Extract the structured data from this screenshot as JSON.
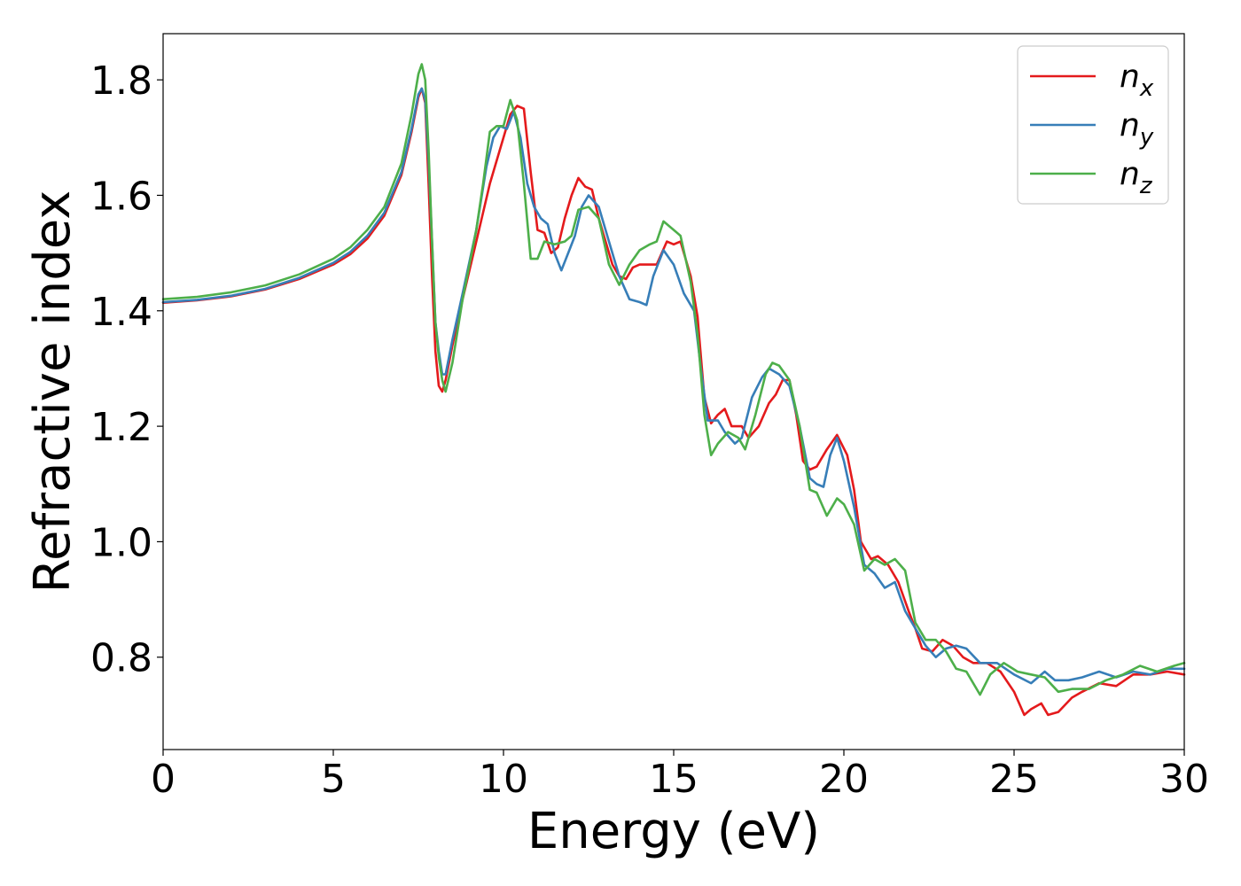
{
  "chart_data": {
    "type": "line",
    "title": "",
    "xlabel": "Energy (eV)",
    "ylabel": "Refractive index",
    "xlim": [
      0,
      30
    ],
    "ylim": [
      0.64,
      1.88
    ],
    "xticks": [
      "0",
      "5",
      "10",
      "15",
      "20",
      "25",
      "30"
    ],
    "yticks": [
      "0.8",
      "1.0",
      "1.2",
      "1.4",
      "1.6",
      "1.8"
    ],
    "grid": false,
    "legend_position": "top-right",
    "series": [
      {
        "name": "n_x",
        "label_base": "n",
        "label_sub": "x",
        "color": "#e41a1c",
        "points": [
          [
            0,
            1.414
          ],
          [
            1,
            1.418
          ],
          [
            2,
            1.425
          ],
          [
            3,
            1.437
          ],
          [
            4,
            1.455
          ],
          [
            5,
            1.48
          ],
          [
            5.5,
            1.498
          ],
          [
            6,
            1.525
          ],
          [
            6.5,
            1.565
          ],
          [
            7,
            1.635
          ],
          [
            7.3,
            1.71
          ],
          [
            7.5,
            1.77
          ],
          [
            7.6,
            1.785
          ],
          [
            7.7,
            1.76
          ],
          [
            7.8,
            1.62
          ],
          [
            7.9,
            1.46
          ],
          [
            8.0,
            1.33
          ],
          [
            8.1,
            1.27
          ],
          [
            8.2,
            1.26
          ],
          [
            8.3,
            1.28
          ],
          [
            8.5,
            1.34
          ],
          [
            8.8,
            1.42
          ],
          [
            9.2,
            1.52
          ],
          [
            9.6,
            1.62
          ],
          [
            10.0,
            1.7
          ],
          [
            10.2,
            1.74
          ],
          [
            10.4,
            1.755
          ],
          [
            10.6,
            1.75
          ],
          [
            10.8,
            1.64
          ],
          [
            11.0,
            1.54
          ],
          [
            11.2,
            1.535
          ],
          [
            11.4,
            1.5
          ],
          [
            11.6,
            1.51
          ],
          [
            11.8,
            1.56
          ],
          [
            12.0,
            1.6
          ],
          [
            12.2,
            1.63
          ],
          [
            12.4,
            1.615
          ],
          [
            12.6,
            1.61
          ],
          [
            12.8,
            1.56
          ],
          [
            13.0,
            1.52
          ],
          [
            13.2,
            1.48
          ],
          [
            13.4,
            1.46
          ],
          [
            13.6,
            1.455
          ],
          [
            13.8,
            1.475
          ],
          [
            14.0,
            1.48
          ],
          [
            14.2,
            1.48
          ],
          [
            14.5,
            1.48
          ],
          [
            14.8,
            1.52
          ],
          [
            15.0,
            1.515
          ],
          [
            15.2,
            1.52
          ],
          [
            15.5,
            1.46
          ],
          [
            15.7,
            1.39
          ],
          [
            15.9,
            1.25
          ],
          [
            16.1,
            1.205
          ],
          [
            16.3,
            1.22
          ],
          [
            16.5,
            1.23
          ],
          [
            16.7,
            1.2
          ],
          [
            17.0,
            1.2
          ],
          [
            17.2,
            1.18
          ],
          [
            17.5,
            1.2
          ],
          [
            17.8,
            1.24
          ],
          [
            18.0,
            1.255
          ],
          [
            18.2,
            1.28
          ],
          [
            18.4,
            1.28
          ],
          [
            18.6,
            1.22
          ],
          [
            18.8,
            1.14
          ],
          [
            19.0,
            1.125
          ],
          [
            19.2,
            1.13
          ],
          [
            19.5,
            1.16
          ],
          [
            19.8,
            1.185
          ],
          [
            20.1,
            1.15
          ],
          [
            20.3,
            1.09
          ],
          [
            20.5,
            1.0
          ],
          [
            20.8,
            0.97
          ],
          [
            21.0,
            0.975
          ],
          [
            21.3,
            0.96
          ],
          [
            21.6,
            0.93
          ],
          [
            21.9,
            0.88
          ],
          [
            22.1,
            0.85
          ],
          [
            22.3,
            0.815
          ],
          [
            22.6,
            0.81
          ],
          [
            22.9,
            0.83
          ],
          [
            23.2,
            0.82
          ],
          [
            23.5,
            0.8
          ],
          [
            23.8,
            0.79
          ],
          [
            24.2,
            0.79
          ],
          [
            24.6,
            0.775
          ],
          [
            25.0,
            0.74
          ],
          [
            25.3,
            0.7
          ],
          [
            25.5,
            0.71
          ],
          [
            25.8,
            0.72
          ],
          [
            26.0,
            0.7
          ],
          [
            26.3,
            0.705
          ],
          [
            26.7,
            0.73
          ],
          [
            27.0,
            0.74
          ],
          [
            27.5,
            0.755
          ],
          [
            28.0,
            0.75
          ],
          [
            28.5,
            0.77
          ],
          [
            29.0,
            0.77
          ],
          [
            29.5,
            0.775
          ],
          [
            30.0,
            0.77
          ]
        ]
      },
      {
        "name": "n_y",
        "label_base": "n",
        "label_sub": "y",
        "color": "#377eb8",
        "points": [
          [
            0,
            1.415
          ],
          [
            1,
            1.419
          ],
          [
            2,
            1.426
          ],
          [
            3,
            1.438
          ],
          [
            4,
            1.457
          ],
          [
            5,
            1.483
          ],
          [
            5.5,
            1.502
          ],
          [
            6,
            1.53
          ],
          [
            6.5,
            1.57
          ],
          [
            7,
            1.64
          ],
          [
            7.3,
            1.715
          ],
          [
            7.5,
            1.775
          ],
          [
            7.6,
            1.785
          ],
          [
            7.7,
            1.765
          ],
          [
            7.8,
            1.66
          ],
          [
            7.9,
            1.52
          ],
          [
            8.0,
            1.38
          ],
          [
            8.1,
            1.33
          ],
          [
            8.2,
            1.29
          ],
          [
            8.3,
            1.29
          ],
          [
            8.5,
            1.35
          ],
          [
            8.8,
            1.43
          ],
          [
            9.2,
            1.54
          ],
          [
            9.5,
            1.65
          ],
          [
            9.7,
            1.7
          ],
          [
            9.9,
            1.72
          ],
          [
            10.1,
            1.715
          ],
          [
            10.3,
            1.745
          ],
          [
            10.5,
            1.7
          ],
          [
            10.7,
            1.62
          ],
          [
            10.9,
            1.58
          ],
          [
            11.1,
            1.56
          ],
          [
            11.3,
            1.55
          ],
          [
            11.5,
            1.5
          ],
          [
            11.7,
            1.47
          ],
          [
            11.9,
            1.5
          ],
          [
            12.1,
            1.53
          ],
          [
            12.3,
            1.58
          ],
          [
            12.5,
            1.6
          ],
          [
            12.8,
            1.58
          ],
          [
            13.1,
            1.52
          ],
          [
            13.4,
            1.46
          ],
          [
            13.7,
            1.42
          ],
          [
            14.0,
            1.415
          ],
          [
            14.2,
            1.41
          ],
          [
            14.4,
            1.46
          ],
          [
            14.7,
            1.505
          ],
          [
            15.0,
            1.48
          ],
          [
            15.3,
            1.43
          ],
          [
            15.6,
            1.4
          ],
          [
            15.8,
            1.3
          ],
          [
            16.0,
            1.21
          ],
          [
            16.3,
            1.21
          ],
          [
            16.5,
            1.19
          ],
          [
            16.8,
            1.17
          ],
          [
            17.0,
            1.18
          ],
          [
            17.3,
            1.25
          ],
          [
            17.6,
            1.285
          ],
          [
            17.8,
            1.3
          ],
          [
            18.1,
            1.29
          ],
          [
            18.4,
            1.27
          ],
          [
            18.7,
            1.2
          ],
          [
            19.0,
            1.11
          ],
          [
            19.2,
            1.1
          ],
          [
            19.4,
            1.095
          ],
          [
            19.6,
            1.15
          ],
          [
            19.8,
            1.18
          ],
          [
            20.0,
            1.14
          ],
          [
            20.3,
            1.06
          ],
          [
            20.6,
            0.96
          ],
          [
            20.9,
            0.945
          ],
          [
            21.2,
            0.92
          ],
          [
            21.5,
            0.93
          ],
          [
            21.8,
            0.88
          ],
          [
            22.1,
            0.85
          ],
          [
            22.4,
            0.82
          ],
          [
            22.7,
            0.8
          ],
          [
            23.0,
            0.815
          ],
          [
            23.3,
            0.82
          ],
          [
            23.6,
            0.815
          ],
          [
            24.0,
            0.79
          ],
          [
            24.5,
            0.79
          ],
          [
            25.0,
            0.77
          ],
          [
            25.5,
            0.755
          ],
          [
            25.9,
            0.775
          ],
          [
            26.2,
            0.76
          ],
          [
            26.6,
            0.76
          ],
          [
            27.0,
            0.765
          ],
          [
            27.5,
            0.775
          ],
          [
            28.0,
            0.765
          ],
          [
            28.5,
            0.775
          ],
          [
            29.0,
            0.77
          ],
          [
            29.5,
            0.78
          ],
          [
            30.0,
            0.78
          ]
        ]
      },
      {
        "name": "n_z",
        "label_base": "n",
        "label_sub": "z",
        "color": "#4daf4a",
        "points": [
          [
            0,
            1.42
          ],
          [
            1,
            1.424
          ],
          [
            2,
            1.432
          ],
          [
            3,
            1.444
          ],
          [
            4,
            1.463
          ],
          [
            5,
            1.49
          ],
          [
            5.5,
            1.51
          ],
          [
            6,
            1.54
          ],
          [
            6.5,
            1.58
          ],
          [
            7,
            1.655
          ],
          [
            7.3,
            1.74
          ],
          [
            7.5,
            1.81
          ],
          [
            7.6,
            1.827
          ],
          [
            7.7,
            1.8
          ],
          [
            7.8,
            1.68
          ],
          [
            7.9,
            1.52
          ],
          [
            8.0,
            1.38
          ],
          [
            8.1,
            1.32
          ],
          [
            8.2,
            1.28
          ],
          [
            8.3,
            1.26
          ],
          [
            8.5,
            1.31
          ],
          [
            8.8,
            1.42
          ],
          [
            9.2,
            1.54
          ],
          [
            9.4,
            1.62
          ],
          [
            9.6,
            1.71
          ],
          [
            9.8,
            1.72
          ],
          [
            10.0,
            1.72
          ],
          [
            10.2,
            1.765
          ],
          [
            10.4,
            1.73
          ],
          [
            10.6,
            1.62
          ],
          [
            10.8,
            1.49
          ],
          [
            11.0,
            1.49
          ],
          [
            11.2,
            1.52
          ],
          [
            11.5,
            1.515
          ],
          [
            11.8,
            1.52
          ],
          [
            12.0,
            1.53
          ],
          [
            12.2,
            1.575
          ],
          [
            12.5,
            1.58
          ],
          [
            12.8,
            1.56
          ],
          [
            13.1,
            1.48
          ],
          [
            13.4,
            1.445
          ],
          [
            13.7,
            1.48
          ],
          [
            14.0,
            1.505
          ],
          [
            14.3,
            1.515
          ],
          [
            14.5,
            1.52
          ],
          [
            14.7,
            1.555
          ],
          [
            15.0,
            1.54
          ],
          [
            15.2,
            1.53
          ],
          [
            15.5,
            1.45
          ],
          [
            15.7,
            1.36
          ],
          [
            15.9,
            1.22
          ],
          [
            16.1,
            1.15
          ],
          [
            16.3,
            1.17
          ],
          [
            16.6,
            1.19
          ],
          [
            16.9,
            1.18
          ],
          [
            17.1,
            1.16
          ],
          [
            17.4,
            1.22
          ],
          [
            17.7,
            1.29
          ],
          [
            17.9,
            1.31
          ],
          [
            18.1,
            1.305
          ],
          [
            18.4,
            1.28
          ],
          [
            18.7,
            1.2
          ],
          [
            19.0,
            1.09
          ],
          [
            19.2,
            1.085
          ],
          [
            19.5,
            1.045
          ],
          [
            19.8,
            1.075
          ],
          [
            20.0,
            1.065
          ],
          [
            20.3,
            1.03
          ],
          [
            20.6,
            0.95
          ],
          [
            20.9,
            0.97
          ],
          [
            21.2,
            0.96
          ],
          [
            21.5,
            0.97
          ],
          [
            21.8,
            0.95
          ],
          [
            22.1,
            0.86
          ],
          [
            22.4,
            0.83
          ],
          [
            22.7,
            0.83
          ],
          [
            23.0,
            0.81
          ],
          [
            23.3,
            0.78
          ],
          [
            23.6,
            0.775
          ],
          [
            24.0,
            0.735
          ],
          [
            24.3,
            0.77
          ],
          [
            24.7,
            0.79
          ],
          [
            25.1,
            0.775
          ],
          [
            25.5,
            0.77
          ],
          [
            25.9,
            0.765
          ],
          [
            26.3,
            0.74
          ],
          [
            26.7,
            0.745
          ],
          [
            27.2,
            0.745
          ],
          [
            27.7,
            0.76
          ],
          [
            28.2,
            0.77
          ],
          [
            28.7,
            0.785
          ],
          [
            29.2,
            0.775
          ],
          [
            29.7,
            0.785
          ],
          [
            30.0,
            0.79
          ]
        ]
      }
    ]
  }
}
